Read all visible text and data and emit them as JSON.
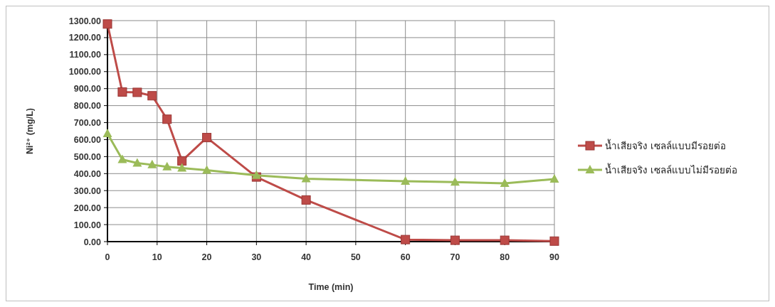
{
  "chart_data": {
    "type": "line",
    "xlabel": "Time (min)",
    "ylabel": "Ni²⁺ (mg/L)",
    "x": [
      0,
      3,
      6,
      9,
      12,
      15,
      20,
      30,
      40,
      60,
      70,
      80,
      90
    ],
    "series": [
      {
        "name": "น้ำเสียจริง เซลล์แบบมีรอยต่อ",
        "color": "#be4b48",
        "marker": "square",
        "values": [
          1280,
          880,
          878,
          858,
          720,
          475,
          612,
          380,
          245,
          12,
          8,
          8,
          3
        ]
      },
      {
        "name": "น้ำเสียจริง เซลล์แบบไม่มีรอยต่อ",
        "color": "#9bbb59",
        "marker": "triangle",
        "values": [
          635,
          483,
          462,
          452,
          440,
          433,
          420,
          390,
          370,
          355,
          350,
          343,
          368
        ]
      }
    ],
    "xlim": [
      0,
      90
    ],
    "xticks": [
      0,
      10,
      20,
      30,
      40,
      50,
      60,
      70,
      80,
      90
    ],
    "ylim": [
      0,
      1300
    ],
    "yticks": [
      {
        "value": 0,
        "label": "0.00"
      },
      {
        "value": 100,
        "label": "100.00"
      },
      {
        "value": 200,
        "label": "200.00"
      },
      {
        "value": 300,
        "label": "300.00"
      },
      {
        "value": 400,
        "label": "400.00"
      },
      {
        "value": 500,
        "label": "500.00"
      },
      {
        "value": 600,
        "label": "600.00"
      },
      {
        "value": 700,
        "label": "700.00"
      },
      {
        "value": 800,
        "label": "800.00"
      },
      {
        "value": 900,
        "label": "900.00"
      },
      {
        "value": 1000,
        "label": "1000.00"
      },
      {
        "value": 1100,
        "label": "1100.00"
      },
      {
        "value": 1200,
        "label": "1200.00"
      },
      {
        "value": 1300,
        "label": "1300.00"
      }
    ],
    "grid": true,
    "legend": "right",
    "line_style": "solid"
  }
}
